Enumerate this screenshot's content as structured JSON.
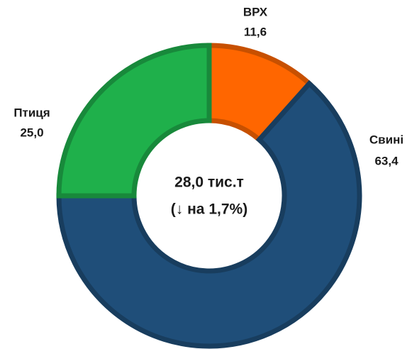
{
  "chart_data": {
    "type": "donut",
    "categories": [
      "ВРХ",
      "Свині",
      "Птиця"
    ],
    "values": [
      11.6,
      63.4,
      25.0
    ],
    "value_labels": [
      "11,6",
      "63,4",
      "25,0"
    ],
    "colors": [
      "#ff6600",
      "#1f4e79",
      "#1fb04b"
    ],
    "annotations": [
      "28,0 тис.т",
      "(↓ на 1,7%)"
    ]
  }
}
